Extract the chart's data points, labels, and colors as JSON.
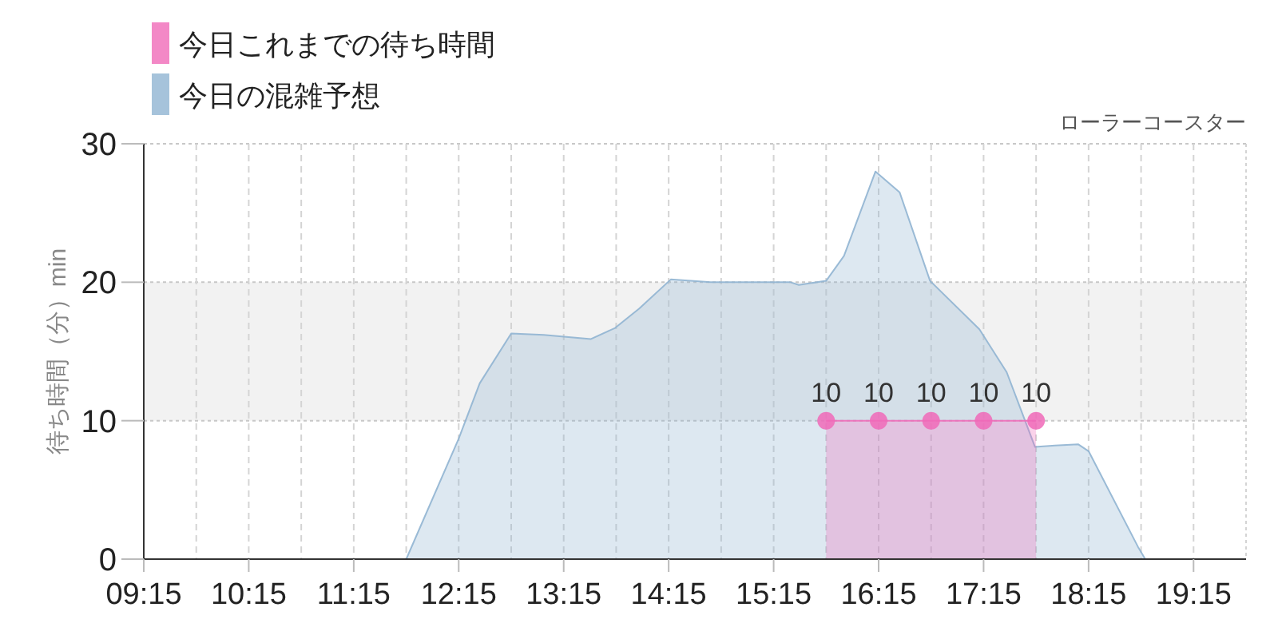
{
  "chart_data": {
    "type": "area",
    "title": "ローラーコースター",
    "ylabel": "待ち時間（分）min",
    "xlim": [
      9.25,
      19.75
    ],
    "xticks": [
      {
        "value": 9.25,
        "label": "09:15"
      },
      {
        "value": 9.75,
        "label": null
      },
      {
        "value": 10.25,
        "label": "10:15"
      },
      {
        "value": 10.75,
        "label": null
      },
      {
        "value": 11.25,
        "label": "11:15"
      },
      {
        "value": 11.75,
        "label": null
      },
      {
        "value": 12.25,
        "label": "12:15"
      },
      {
        "value": 12.75,
        "label": null
      },
      {
        "value": 13.25,
        "label": "13:15"
      },
      {
        "value": 13.75,
        "label": null
      },
      {
        "value": 14.25,
        "label": "14:15"
      },
      {
        "value": 14.75,
        "label": null
      },
      {
        "value": 15.25,
        "label": "15:15"
      },
      {
        "value": 15.75,
        "label": null
      },
      {
        "value": 16.25,
        "label": "16:15"
      },
      {
        "value": 16.75,
        "label": null
      },
      {
        "value": 17.25,
        "label": "17:15"
      },
      {
        "value": 17.75,
        "label": null
      },
      {
        "value": 18.25,
        "label": "18:15"
      },
      {
        "value": 18.75,
        "label": null
      },
      {
        "value": 19.25,
        "label": "19:15"
      }
    ],
    "ylim": [
      0,
      30
    ],
    "yticks": [
      0,
      10,
      20,
      30
    ],
    "grid": true,
    "legend": "top left",
    "bands": [
      {
        "axis": "y",
        "from": 10,
        "to": 20,
        "color": "#f2f2f2"
      }
    ],
    "series": [
      {
        "name": "今日の混雑予想",
        "color": "#90b4d2",
        "marker": "none",
        "x": [
          9.25,
          10.25,
          11.25,
          11.75,
          12.25,
          12.45,
          12.75,
          13.06,
          13.51,
          13.74,
          13.97,
          14.27,
          14.65,
          15.41,
          15.49,
          15.75,
          15.92,
          16.22,
          16.45,
          16.74,
          17.21,
          17.47,
          17.74,
          17.93,
          18.15,
          18.25,
          18.72,
          18.79,
          19.25,
          19.75
        ],
        "values": [
          0,
          0,
          0,
          0,
          8.7,
          12.7,
          16.3,
          16.2,
          15.9,
          16.7,
          18.1,
          20.2,
          20.0,
          20.0,
          19.8,
          20.1,
          21.9,
          28.0,
          26.5,
          20.1,
          16.6,
          13.5,
          8.1,
          8.2,
          8.3,
          7.8,
          0.9,
          0,
          0,
          0
        ]
      },
      {
        "name": "今日これまでの待ち時間",
        "color": "#f06ab8",
        "marker": "circle",
        "data_labels": true,
        "x": [
          15.75,
          16.25,
          16.75,
          17.25,
          17.75
        ],
        "values": [
          10,
          10,
          10,
          10,
          10
        ]
      }
    ]
  }
}
